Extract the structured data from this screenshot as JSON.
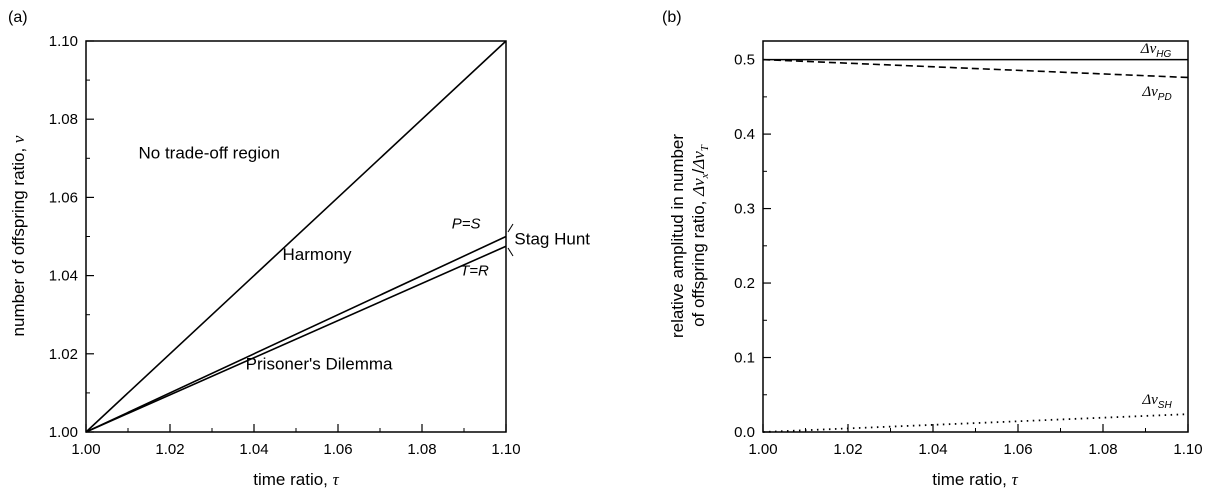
{
  "chart_data": [
    {
      "type": "line",
      "panel_label": "(a)",
      "xlabel": "time ratio, ",
      "xlabel_symbol": "τ",
      "ylabel": "number of offspring ratio, ",
      "ylabel_symbol": "ν",
      "xlim": [
        1.0,
        1.1
      ],
      "ylim": [
        1.0,
        1.1
      ],
      "xticks": [
        "1.00",
        "1.02",
        "1.04",
        "1.06",
        "1.08",
        "1.10"
      ],
      "yticks": [
        "1.00",
        "1.02",
        "1.04",
        "1.06",
        "1.08",
        "1.10"
      ],
      "grid": false,
      "series": [
        {
          "x": [
            1.0,
            1.1
          ],
          "y": [
            1.0,
            1.1
          ],
          "style": "solid"
        },
        {
          "x": [
            1.0,
            1.1
          ],
          "y": [
            1.0,
            1.05
          ],
          "style": "solid"
        },
        {
          "x": [
            1.0,
            1.1
          ],
          "y": [
            1.0,
            1.0475
          ],
          "style": "solid"
        }
      ],
      "annotations": {
        "no_tradeoff": {
          "text": "No trade-off region",
          "x": 1.0125,
          "y": 1.07
        },
        "harmony": {
          "text": "Harmony",
          "x": 1.055,
          "y": 1.044
        },
        "stag_hunt": {
          "text": "Stag Hunt",
          "x": 1.102,
          "y": 1.048
        },
        "p_eq_s": {
          "text": "P=S",
          "x": 1.0905,
          "y": 1.052
        },
        "t_eq_r": {
          "text": "T=R",
          "x": 1.0925,
          "y": 1.04
        },
        "prisoners": {
          "text": "Prisoner's Dilemma",
          "x": 1.0555,
          "y": 1.016
        }
      }
    },
    {
      "type": "line",
      "panel_label": "(b)",
      "xlabel": "time ratio, ",
      "xlabel_symbol": "τ",
      "ylabel_line1": "relative amplitud in number",
      "ylabel_line2": "of offspring ratio, ",
      "ylabel_symbol": "Δν",
      "ylabel_sub_x": "x",
      "ylabel_sub_t": "T",
      "xlim": [
        1.0,
        1.1
      ],
      "ylim": [
        0.0,
        0.525
      ],
      "xticks": [
        "1.00",
        "1.02",
        "1.04",
        "1.06",
        "1.08",
        "1.10"
      ],
      "yticks": [
        "0.0",
        "0.1",
        "0.2",
        "0.3",
        "0.4",
        "0.5"
      ],
      "grid": false,
      "series": [
        {
          "name": "HG",
          "x": [
            1.0,
            1.1
          ],
          "y": [
            0.5,
            0.5
          ],
          "style": "solid"
        },
        {
          "name": "PD",
          "x": [
            1.0,
            1.1
          ],
          "y": [
            0.5,
            0.476
          ],
          "style": "dashed"
        },
        {
          "name": "SH",
          "x": [
            1.0,
            1.1
          ],
          "y": [
            0.0,
            0.024
          ],
          "style": "dotted"
        }
      ],
      "annotations": {
        "hg": {
          "sym": "Δν",
          "sub": "HG"
        },
        "pd": {
          "sym": "Δν",
          "sub": "PD"
        },
        "sh": {
          "sym": "Δν",
          "sub": "SH"
        }
      }
    }
  ]
}
